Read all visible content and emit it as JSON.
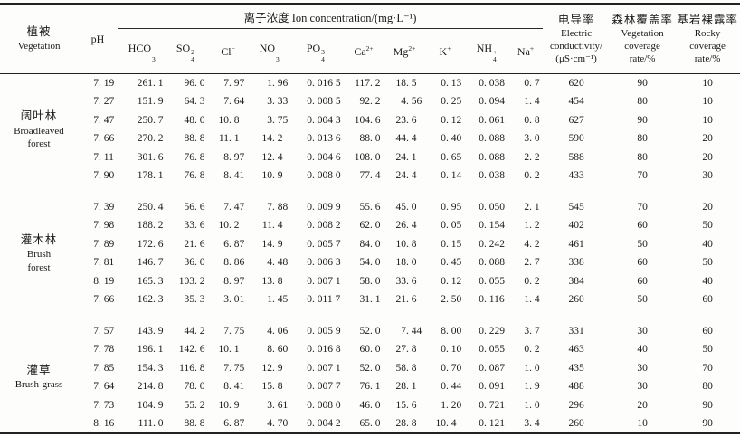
{
  "page": {
    "background": "#fdfdfc",
    "text_color": "#1a1a1a",
    "rule_color": "#222222"
  },
  "table": {
    "header": {
      "vegetation": {
        "zh": "植被",
        "en": "Vegetation"
      },
      "ph": "pH",
      "ion_group": "离子浓度 Ion concentration/(mg·L⁻¹)",
      "ions": [
        {
          "name": "hco3",
          "base": "HCO",
          "sub": "3",
          "sup": "−"
        },
        {
          "name": "so4",
          "base": "SO",
          "sub": "4",
          "sup": "2−"
        },
        {
          "name": "cl",
          "base": "Cl",
          "sup": "−"
        },
        {
          "name": "no3",
          "base": "NO",
          "sub": "3",
          "sup": "−"
        },
        {
          "name": "po4",
          "base": "PO",
          "sub": "4",
          "sup": "3−"
        },
        {
          "name": "ca",
          "base": "Ca",
          "sup": "2+"
        },
        {
          "name": "mg",
          "base": "Mg",
          "sup": "2+"
        },
        {
          "name": "k",
          "base": "K",
          "sup": "+"
        },
        {
          "name": "nh4",
          "base": "NH",
          "sub": "4",
          "sup": "+"
        },
        {
          "name": "na",
          "base": "Na",
          "sup": "+"
        }
      ],
      "conductivity": {
        "zh": "电导率",
        "en_lines": [
          "Electric",
          "conductivity/",
          "(μS·cm⁻¹)"
        ]
      },
      "vegetation_coverage": {
        "zh": "森林覆盖率",
        "en_lines": [
          "Vegetation",
          "coverage",
          "rate/%"
        ]
      },
      "rocky_coverage": {
        "zh": "基岩裸露率",
        "en_lines": [
          "Rocky",
          "coverage",
          "rate/%"
        ]
      }
    },
    "column_keys": [
      "pH",
      "HCO3",
      "SO4",
      "Cl",
      "NO3",
      "PO4",
      "Ca",
      "Mg",
      "K",
      "NH4",
      "Na",
      "electric_conductivity",
      "vegetation_coverage_pct",
      "rocky_coverage_pct"
    ],
    "groups": [
      {
        "label_zh": "阔叶林",
        "label_en_lines": [
          "Broadleaved",
          "forest"
        ],
        "rows": [
          [
            "7. 19",
            "261. 1",
            "96. 0",
            "7. 97",
            "1. 96",
            "0. 016 5",
            "117. 2",
            "18. 5",
            "0. 13",
            "0. 038",
            "0. 7",
            "620",
            "90",
            "10"
          ],
          [
            "7. 27",
            "151. 9",
            "64. 3",
            "7. 64",
            "3. 33",
            "0. 008 5",
            "92. 2",
            "4. 56",
            "0. 25",
            "0. 094",
            "1. 4",
            "454",
            "80",
            "10"
          ],
          [
            "7. 47",
            "250. 7",
            "48. 0",
            "10. 8",
            "3. 75",
            "0. 004 3",
            "104. 6",
            "23. 6",
            "0. 12",
            "0. 061",
            "0. 8",
            "627",
            "90",
            "10"
          ],
          [
            "7. 66",
            "270. 2",
            "88. 8",
            "11. 1",
            "14. 2",
            "0. 013 6",
            "88. 0",
            "44. 4",
            "0. 40",
            "0. 088",
            "3. 0",
            "590",
            "80",
            "20"
          ],
          [
            "7. 11",
            "301. 6",
            "76. 8",
            "8. 97",
            "12. 4",
            "0. 004 6",
            "108. 0",
            "24. 1",
            "0. 65",
            "0. 088",
            "2. 2",
            "588",
            "80",
            "20"
          ],
          [
            "7. 90",
            "178. 1",
            "76. 8",
            "8. 41",
            "10. 9",
            "0. 008 0",
            "77. 4",
            "24. 4",
            "0. 14",
            "0. 038",
            "0. 2",
            "433",
            "70",
            "30"
          ]
        ]
      },
      {
        "label_zh": "灌木林",
        "label_en_lines": [
          "Brush",
          "forest"
        ],
        "rows": [
          [
            "7. 39",
            "250. 4",
            "56. 6",
            "7. 47",
            "7. 88",
            "0. 009 9",
            "55. 6",
            "45. 0",
            "0. 95",
            "0. 050",
            "2. 1",
            "545",
            "70",
            "20"
          ],
          [
            "7. 98",
            "188. 2",
            "33. 6",
            "10. 2",
            "11. 4",
            "0. 008 2",
            "62. 0",
            "26. 4",
            "0. 05",
            "0. 154",
            "1. 2",
            "402",
            "60",
            "50"
          ],
          [
            "7. 89",
            "172. 6",
            "21. 6",
            "6. 87",
            "14. 9",
            "0. 005 7",
            "84. 0",
            "10. 8",
            "0. 15",
            "0. 242",
            "4. 2",
            "461",
            "50",
            "40"
          ],
          [
            "7. 81",
            "146. 7",
            "36. 0",
            "8. 86",
            "4. 48",
            "0. 006 3",
            "54. 0",
            "18. 0",
            "0. 45",
            "0. 088",
            "2. 7",
            "338",
            "60",
            "50"
          ],
          [
            "8. 19",
            "165. 3",
            "103. 2",
            "8. 97",
            "13. 8",
            "0. 007 1",
            "58. 0",
            "33. 6",
            "0. 12",
            "0. 055",
            "0. 2",
            "384",
            "60",
            "40"
          ],
          [
            "7. 66",
            "162. 3",
            "35. 3",
            "3. 01",
            "1. 45",
            "0. 011 7",
            "31. 1",
            "21. 6",
            "2. 50",
            "0. 116",
            "1. 4",
            "260",
            "50",
            "60"
          ]
        ]
      },
      {
        "label_zh": "灌草",
        "label_en_lines": [
          "Brush-grass"
        ],
        "rows": [
          [
            "7. 57",
            "143. 9",
            "44. 2",
            "7. 75",
            "4. 06",
            "0. 005 9",
            "52. 0",
            "7. 44",
            "8. 00",
            "0. 229",
            "3. 7",
            "331",
            "30",
            "60"
          ],
          [
            "7. 78",
            "196. 1",
            "142. 6",
            "10. 1",
            "8. 60",
            "0. 016 8",
            "60. 0",
            "27. 8",
            "0. 10",
            "0. 055",
            "0. 2",
            "463",
            "40",
            "50"
          ],
          [
            "7. 85",
            "154. 3",
            "116. 8",
            "7. 75",
            "12. 9",
            "0. 007 1",
            "52. 0",
            "58. 8",
            "0. 70",
            "0. 087",
            "1. 0",
            "435",
            "30",
            "70"
          ],
          [
            "7. 64",
            "214. 8",
            "78. 0",
            "8. 41",
            "15. 8",
            "0. 007 7",
            "76. 1",
            "28. 1",
            "0. 44",
            "0. 091",
            "1. 9",
            "488",
            "30",
            "80"
          ],
          [
            "7. 73",
            "104. 9",
            "55. 2",
            "10. 9",
            "3. 61",
            "0. 008 0",
            "46. 0",
            "15. 6",
            "1. 20",
            "0. 721",
            "1. 0",
            "296",
            "20",
            "90"
          ],
          [
            "8. 16",
            "111. 0",
            "88. 8",
            "6. 87",
            "4. 70",
            "0. 004 2",
            "65. 0",
            "28. 8",
            "10. 4",
            "0. 121",
            "3. 4",
            "260",
            "10",
            "90"
          ]
        ]
      }
    ]
  }
}
